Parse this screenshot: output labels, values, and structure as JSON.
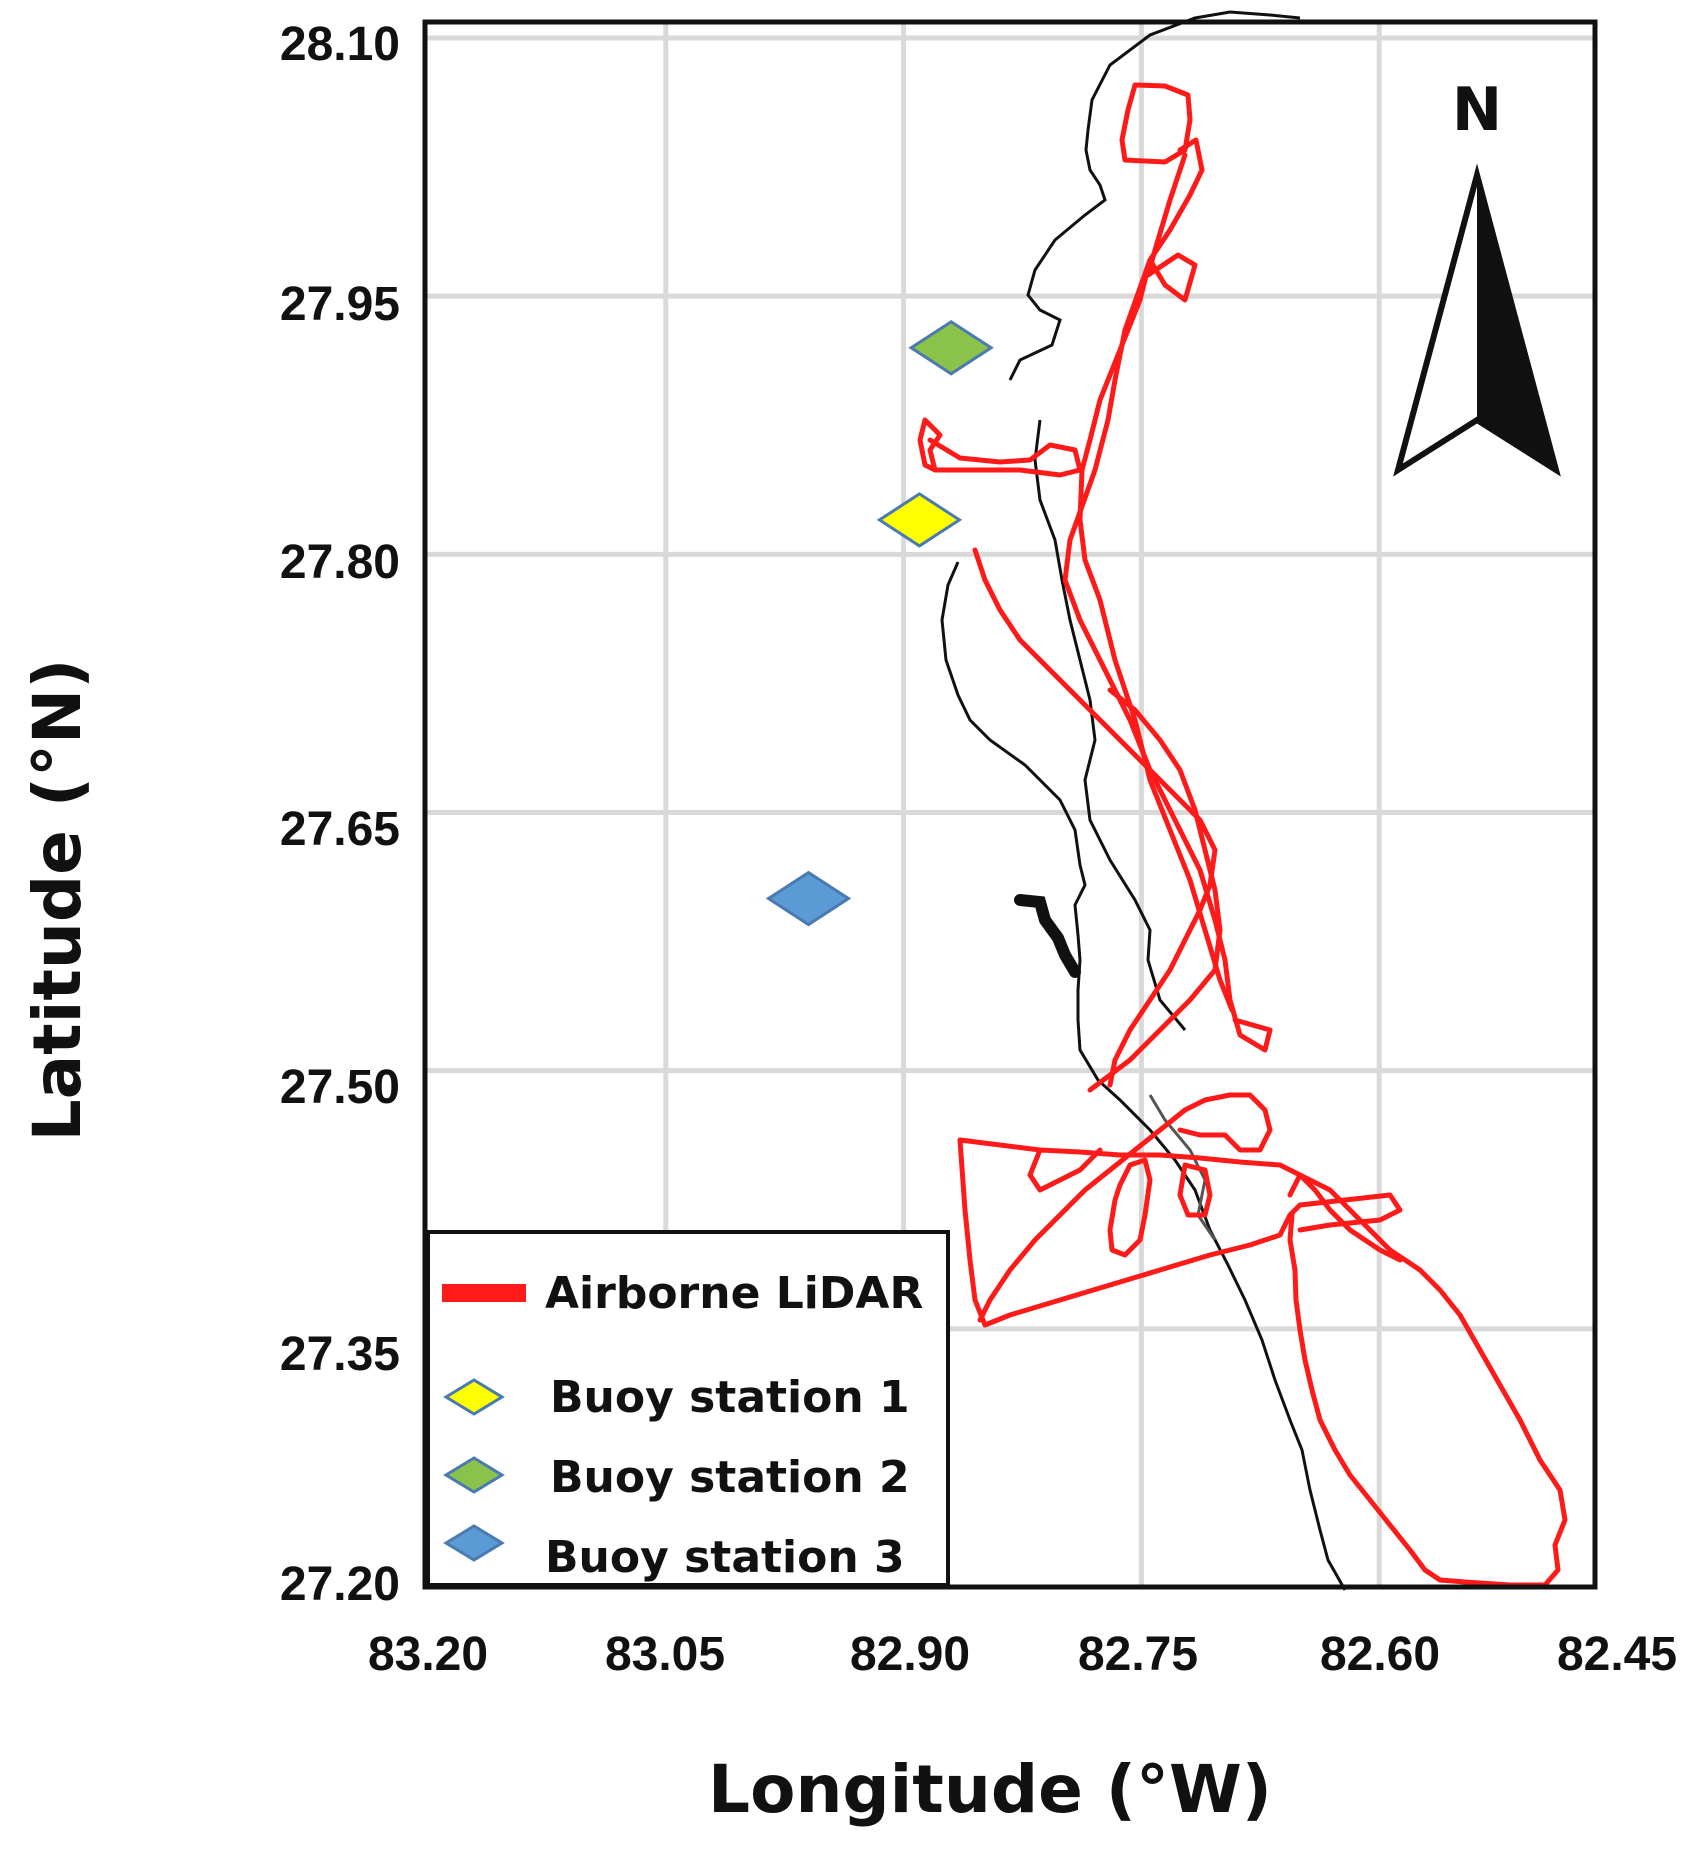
{
  "figure": {
    "type": "map",
    "x_axis_title": "Longitude  (°W)",
    "y_axis_title": "Latitude  (°N)",
    "x_ticks": [
      "83.20",
      "83.05",
      "82.90",
      "82.75",
      "82.60",
      "82.45"
    ],
    "y_ticks": [
      "28.10",
      "27.95",
      "27.80",
      "27.65",
      "27.50",
      "27.35",
      "27.20"
    ],
    "grid": true,
    "north_arrow_label": "N",
    "legend": {
      "placement": "bottom-left",
      "items": [
        {
          "label": "Airborne LiDAR",
          "symbol": "line",
          "color": "#ff1a1a"
        },
        {
          "label": "Buoy station 1",
          "symbol": "diamond",
          "color": "#ffff00"
        },
        {
          "label": "Buoy station 2",
          "symbol": "diamond",
          "color": "#8bc34a"
        },
        {
          "label": "Buoy station 3",
          "symbol": "diamond",
          "color": "#5b9bd5"
        }
      ]
    }
  },
  "chart_data": {
    "type": "scatter",
    "xlabel": "Longitude  (°W)",
    "ylabel": "Latitude  (°N)",
    "xlim": [
      83.2,
      82.45
    ],
    "ylim": [
      27.2,
      28.1
    ],
    "series": [
      {
        "name": "Buoy station 1",
        "color": "#ffff00",
        "x": [
          82.89
        ],
        "y": [
          27.82
        ]
      },
      {
        "name": "Buoy station 2",
        "color": "#8bc34a",
        "x": [
          82.87
        ],
        "y": [
          27.92
        ]
      },
      {
        "name": "Buoy station 3",
        "color": "#5b9bd5",
        "x": [
          82.96
        ],
        "y": [
          27.6
        ]
      }
    ],
    "colors": {
      "lidar": "#ff1a1a",
      "coast": "#111111",
      "grid": "#d9d9d9"
    }
  }
}
